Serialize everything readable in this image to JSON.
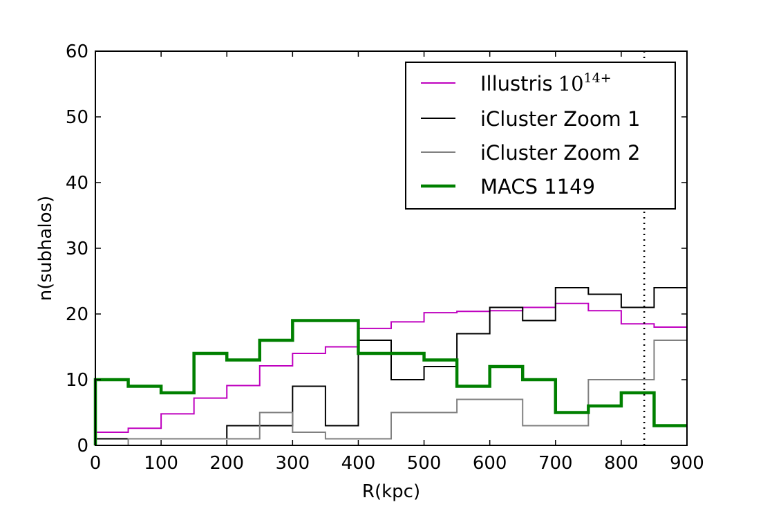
{
  "chart_data": {
    "type": "line",
    "drawstyle": "steps-post",
    "xlabel": "R(kpc)",
    "ylabel": "n(subhalos)",
    "xlim": [
      0,
      900
    ],
    "ylim": [
      0,
      60
    ],
    "xticks": [
      "0",
      "100",
      "200",
      "300",
      "400",
      "500",
      "600",
      "700",
      "800",
      "900"
    ],
    "yticks": [
      "0",
      "10",
      "20",
      "30",
      "40",
      "50",
      "60"
    ],
    "grid": false,
    "legend_position": "upper-right",
    "bin_edges": [
      0,
      50,
      100,
      150,
      200,
      250,
      300,
      350,
      400,
      450,
      500,
      550,
      600,
      650,
      700,
      750,
      800,
      850,
      900
    ],
    "vline": {
      "x": 835,
      "style": "dotted",
      "color": "#000000"
    },
    "series": [
      {
        "name": "Illustris",
        "name_math": "10",
        "name_sup": "14+",
        "color": "#bf00bf",
        "linewidth": 2,
        "values": [
          2,
          2.6,
          4.8,
          7.2,
          9.1,
          12.1,
          14,
          15,
          17.8,
          18.8,
          20.2,
          20.4,
          20.5,
          21,
          21.6,
          20.5,
          18.5,
          18
        ]
      },
      {
        "name": "iCluster Zoom 1",
        "color": "#000000",
        "linewidth": 2,
        "values": [
          1,
          1,
          1,
          1,
          3,
          3,
          9,
          3,
          16,
          10,
          12,
          17,
          21,
          19,
          24,
          23,
          21,
          24
        ]
      },
      {
        "name": "iCluster Zoom 2",
        "color": "#808080",
        "linewidth": 2,
        "values": [
          0,
          1,
          1,
          1,
          1,
          5,
          2,
          1,
          1,
          5,
          5,
          7,
          7,
          3,
          3,
          10,
          10,
          16
        ]
      },
      {
        "name": "MACS 1149",
        "color": "#008000",
        "linewidth": 4.5,
        "values": [
          10,
          9,
          8,
          14,
          13,
          16,
          19,
          19,
          14,
          14,
          13,
          9,
          12,
          10,
          5,
          6,
          8,
          3
        ]
      }
    ]
  }
}
